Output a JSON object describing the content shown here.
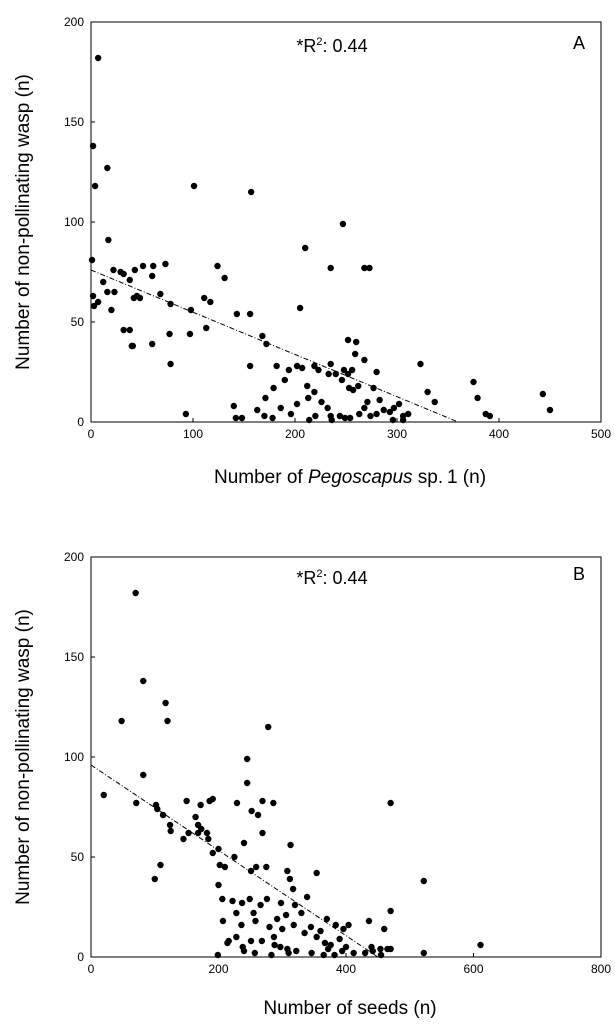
{
  "chart_data": [
    {
      "type": "scatter",
      "panel": "A",
      "annotation": {
        "prefix": "*R",
        "superscript": "2",
        "suffix": ": 0.44"
      },
      "xlabel": {
        "prefix": "Number of ",
        "italic": "Pegoscapus",
        "suffix": " sp. 1 (n)"
      },
      "ylabel": "Number of non-pollinating wasp (n)",
      "xlim": [
        0,
        500
      ],
      "ylim": [
        0,
        200
      ],
      "x_ticks": [
        "0",
        "100",
        "200",
        "300",
        "400",
        "500"
      ],
      "y_ticks": [
        "0",
        "50",
        "100",
        "150",
        "200"
      ],
      "grid": false,
      "marker_color": "#000000",
      "trendline": {
        "style": "dashed",
        "x": [
          0,
          360
        ],
        "y": [
          76,
          0
        ]
      },
      "points": [
        [
          7,
          182
        ],
        [
          2,
          138
        ],
        [
          16,
          127
        ],
        [
          4,
          118
        ],
        [
          101,
          118
        ],
        [
          157,
          115
        ],
        [
          17,
          91
        ],
        [
          247,
          99
        ],
        [
          210,
          87
        ],
        [
          1,
          81
        ],
        [
          235,
          77
        ],
        [
          268,
          77
        ],
        [
          273,
          77
        ],
        [
          73,
          79
        ],
        [
          124,
          78
        ],
        [
          51,
          78
        ],
        [
          61,
          78
        ],
        [
          22,
          76
        ],
        [
          29,
          75
        ],
        [
          32,
          74
        ],
        [
          43,
          76
        ],
        [
          38,
          71
        ],
        [
          12,
          70
        ],
        [
          16,
          65
        ],
        [
          23,
          65
        ],
        [
          42,
          62
        ],
        [
          45,
          63
        ],
        [
          48,
          62
        ],
        [
          68,
          64
        ],
        [
          2,
          63
        ],
        [
          7,
          60
        ],
        [
          3,
          58
        ],
        [
          20,
          56
        ],
        [
          131,
          72
        ],
        [
          111,
          62
        ],
        [
          117,
          60
        ],
        [
          143,
          54
        ],
        [
          156,
          54
        ],
        [
          205,
          57
        ],
        [
          78,
          59
        ],
        [
          98,
          56
        ],
        [
          113,
          47
        ],
        [
          60,
          73
        ],
        [
          32,
          46
        ],
        [
          38,
          46
        ],
        [
          40,
          38
        ],
        [
          41,
          38
        ],
        [
          60,
          39
        ],
        [
          77,
          44
        ],
        [
          168,
          43
        ],
        [
          172,
          39
        ],
        [
          78,
          29
        ],
        [
          97,
          44
        ],
        [
          252,
          41
        ],
        [
          260,
          40
        ],
        [
          259,
          34
        ],
        [
          268,
          31
        ],
        [
          235,
          29
        ],
        [
          182,
          28
        ],
        [
          202,
          28
        ],
        [
          207,
          27
        ],
        [
          219,
          28
        ],
        [
          233,
          24
        ],
        [
          240,
          24
        ],
        [
          246,
          21
        ],
        [
          248,
          26
        ],
        [
          252,
          24
        ],
        [
          256,
          26
        ],
        [
          253,
          17
        ],
        [
          257,
          16
        ],
        [
          262,
          18
        ],
        [
          280,
          25
        ],
        [
          277,
          17
        ],
        [
          271,
          10
        ],
        [
          283,
          11
        ],
        [
          302,
          9
        ],
        [
          297,
          7
        ],
        [
          293,
          5
        ],
        [
          306,
          3
        ],
        [
          311,
          4
        ],
        [
          323,
          29
        ],
        [
          330,
          15
        ],
        [
          337,
          10
        ],
        [
          156,
          28
        ],
        [
          190,
          21
        ],
        [
          194,
          26
        ],
        [
          212,
          18
        ],
        [
          213,
          12
        ],
        [
          223,
          26
        ],
        [
          179,
          17
        ],
        [
          171,
          12
        ],
        [
          186,
          7
        ],
        [
          196,
          4
        ],
        [
          202,
          9
        ],
        [
          219,
          15
        ],
        [
          226,
          10
        ],
        [
          232,
          7
        ],
        [
          244,
          3
        ],
        [
          249,
          2
        ],
        [
          263,
          4
        ],
        [
          268,
          7
        ],
        [
          274,
          3
        ],
        [
          280,
          4
        ],
        [
          287,
          6
        ],
        [
          142,
          2
        ],
        [
          148,
          2
        ],
        [
          163,
          6
        ],
        [
          170,
          3
        ],
        [
          178,
          2
        ],
        [
          220,
          3
        ],
        [
          235,
          3
        ],
        [
          296,
          1
        ],
        [
          306,
          1
        ],
        [
          140,
          8
        ],
        [
          93,
          4
        ],
        [
          375,
          20
        ],
        [
          379,
          12
        ],
        [
          387,
          4
        ],
        [
          391,
          3
        ],
        [
          443,
          14
        ],
        [
          450,
          6
        ],
        [
          214,
          1
        ],
        [
          236,
          1
        ],
        [
          254,
          2
        ]
      ]
    },
    {
      "type": "scatter",
      "panel": "B",
      "annotation": {
        "prefix": "*R",
        "superscript": "2",
        "suffix": ": 0.44"
      },
      "xlabel": {
        "prefix": "Number of seeds (n)",
        "italic": "",
        "suffix": ""
      },
      "ylabel": "Number of non-pollinating wasp (n)",
      "xlim": [
        0,
        800
      ],
      "ylim": [
        0,
        200
      ],
      "x_ticks": [
        "0",
        "200",
        "400",
        "600",
        "800"
      ],
      "y_ticks": [
        "0",
        "50",
        "100",
        "150",
        "200"
      ],
      "grid": false,
      "marker_color": "#000000",
      "trendline": {
        "style": "dashed",
        "x": [
          0,
          450
        ],
        "y": [
          96,
          0
        ]
      },
      "points": [
        [
          70,
          182
        ],
        [
          82,
          138
        ],
        [
          117,
          127
        ],
        [
          48,
          118
        ],
        [
          120,
          118
        ],
        [
          278,
          115
        ],
        [
          245,
          99
        ],
        [
          82,
          91
        ],
        [
          245,
          87
        ],
        [
          20,
          81
        ],
        [
          71,
          77
        ],
        [
          102,
          76
        ],
        [
          104,
          74
        ],
        [
          113,
          71
        ],
        [
          150,
          78
        ],
        [
          164,
          70
        ],
        [
          172,
          76
        ],
        [
          186,
          78
        ],
        [
          191,
          79
        ],
        [
          229,
          77
        ],
        [
          252,
          73
        ],
        [
          269,
          78
        ],
        [
          286,
          77
        ],
        [
          124,
          66
        ],
        [
          125,
          63
        ],
        [
          153,
          62
        ],
        [
          168,
          66
        ],
        [
          168,
          62
        ],
        [
          173,
          64
        ],
        [
          182,
          62
        ],
        [
          184,
          59
        ],
        [
          145,
          59
        ],
        [
          100,
          39
        ],
        [
          109,
          46
        ],
        [
          191,
          52
        ],
        [
          200,
          54
        ],
        [
          202,
          46
        ],
        [
          200,
          36
        ],
        [
          225,
          50
        ],
        [
          240,
          57
        ],
        [
          251,
          43
        ],
        [
          259,
          45
        ],
        [
          262,
          71
        ],
        [
          269,
          62
        ],
        [
          275,
          45
        ],
        [
          313,
          56
        ],
        [
          308,
          43
        ],
        [
          210,
          45
        ],
        [
          206,
          29
        ],
        [
          222,
          28
        ],
        [
          207,
          18
        ],
        [
          228,
          22
        ],
        [
          237,
          27
        ],
        [
          249,
          29
        ],
        [
          255,
          22
        ],
        [
          266,
          26
        ],
        [
          276,
          29
        ],
        [
          298,
          27
        ],
        [
          312,
          39
        ],
        [
          317,
          34
        ],
        [
          320,
          26
        ],
        [
          339,
          30
        ],
        [
          354,
          42
        ],
        [
          370,
          19
        ],
        [
          384,
          16
        ],
        [
          396,
          14
        ],
        [
          404,
          16
        ],
        [
          216,
          8
        ],
        [
          228,
          10
        ],
        [
          238,
          5
        ],
        [
          251,
          8
        ],
        [
          268,
          8
        ],
        [
          280,
          15
        ],
        [
          287,
          10
        ],
        [
          297,
          5
        ],
        [
          300,
          14
        ],
        [
          318,
          16
        ],
        [
          330,
          22
        ],
        [
          345,
          15
        ],
        [
          354,
          10
        ],
        [
          360,
          13
        ],
        [
          367,
          7
        ],
        [
          376,
          6
        ],
        [
          390,
          9
        ],
        [
          400,
          5
        ],
        [
          412,
          2
        ],
        [
          436,
          18
        ],
        [
          470,
          77
        ],
        [
          522,
          38
        ],
        [
          611,
          6
        ],
        [
          470,
          23
        ],
        [
          460,
          14
        ],
        [
          470,
          4
        ],
        [
          440,
          5
        ],
        [
          430,
          2
        ],
        [
          522,
          2
        ],
        [
          199,
          1
        ],
        [
          257,
          2
        ],
        [
          283,
          1
        ],
        [
          310,
          2
        ],
        [
          322,
          3
        ],
        [
          346,
          2
        ],
        [
          365,
          1
        ],
        [
          382,
          1
        ],
        [
          394,
          3
        ],
        [
          442,
          3
        ],
        [
          455,
          1
        ],
        [
          236,
          16
        ],
        [
          258,
          18
        ],
        [
          292,
          19
        ],
        [
          335,
          12
        ],
        [
          306,
          21
        ],
        [
          240,
          3
        ],
        [
          288,
          6
        ],
        [
          308,
          4
        ],
        [
          372,
          4
        ],
        [
          454,
          4
        ],
        [
          465,
          4
        ],
        [
          214,
          7
        ]
      ]
    }
  ]
}
